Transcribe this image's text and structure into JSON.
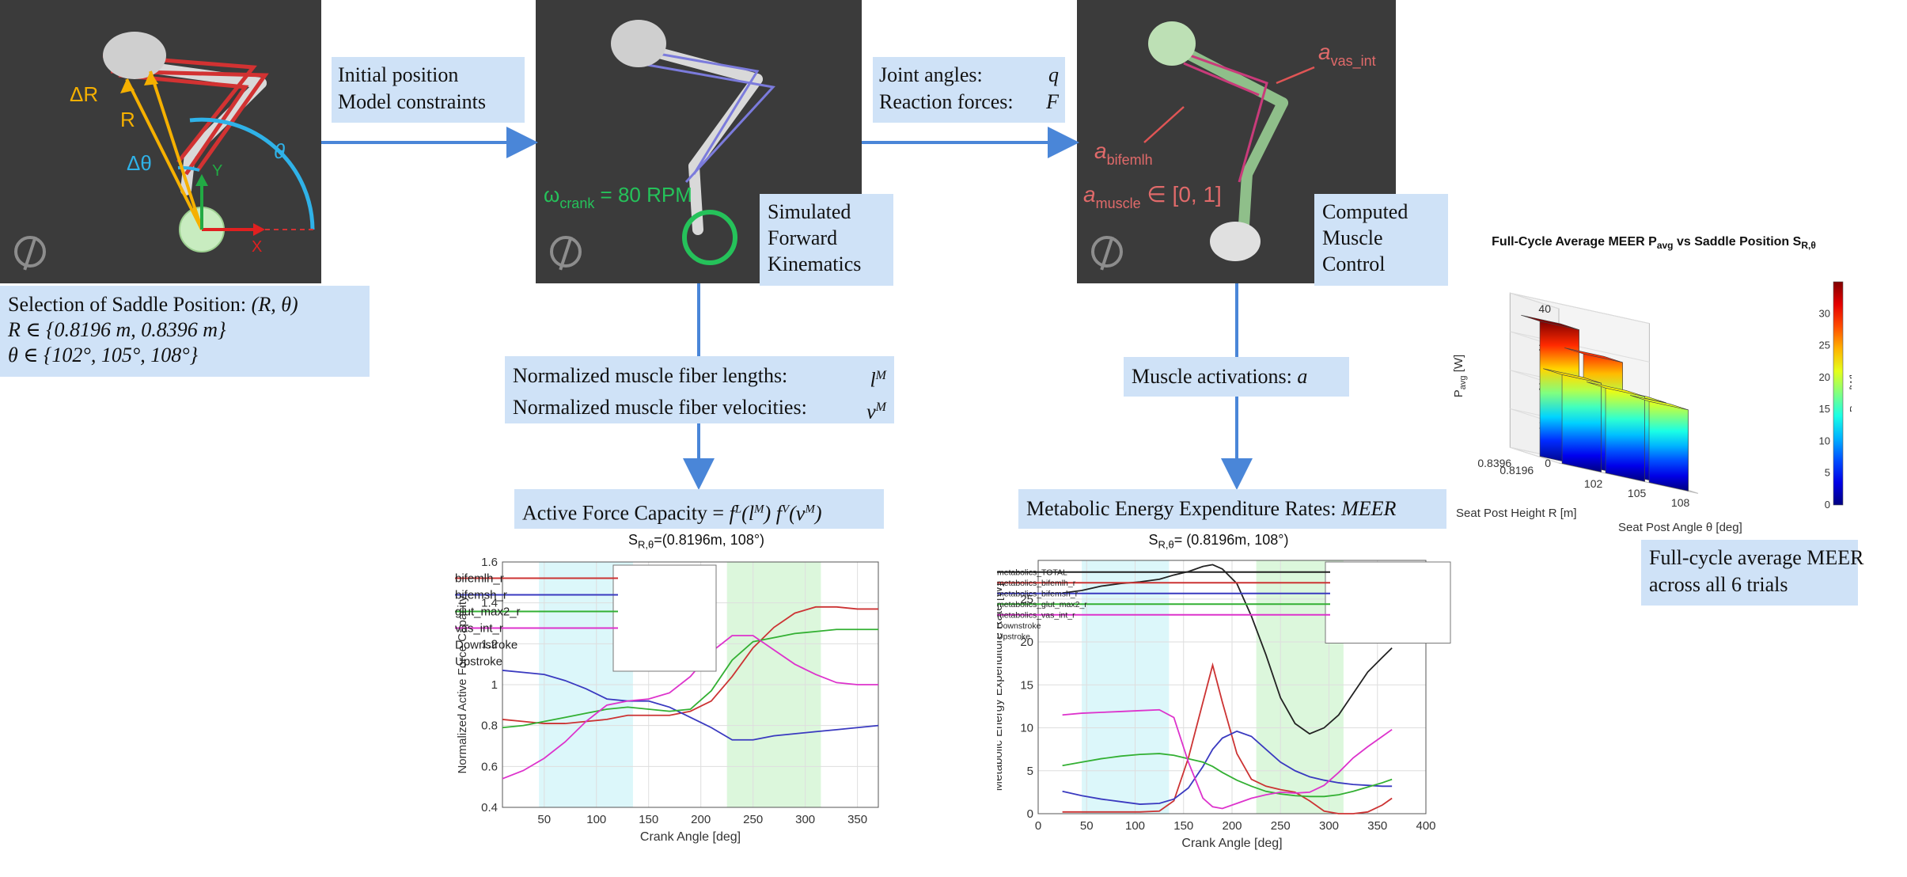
{
  "panels": {
    "p1": {
      "angle_r": "ΔR",
      "r": "R",
      "angle_dtheta": "Δθ",
      "theta": "θ",
      "axis_y": "Y",
      "axis_x": "X"
    },
    "p2": {
      "omega": "ω",
      "omega_sub": "crank",
      "omega_rest": " = 80 RPM"
    },
    "p3": {
      "a_vas": "a",
      "a_vas_sub": "vas_int",
      "a_bif": "a",
      "a_bif_sub": "bifemlh",
      "a_mus": "a",
      "a_mus_sub": "muscle",
      "a_mus_rest": " ∈ [0, 1]"
    }
  },
  "boxes": {
    "saddle": {
      "line1": "Selection of Saddle Position: ",
      "line1_it": "(R, θ)",
      "line2": "R ∈ {0.8196 m, 0.8396 m}",
      "line3": "θ ∈ {102°, 105°, 108°}"
    },
    "initial": {
      "line1": "Initial position",
      "line2": "Model constraints"
    },
    "joint": {
      "line1": "Joint angles:",
      "line1_sym": "q",
      "line2": "Reaction forces:",
      "line2_sym": "F"
    },
    "sim": {
      "line1": "Simulated",
      "line2": "Forward",
      "line3": "Kinematics"
    },
    "comp": {
      "line1": "Computed",
      "line2": "Muscle",
      "line3": "Control"
    },
    "fiber": {
      "line1": "Normalized muscle fiber lengths:",
      "line1_sym": "l",
      "line1_sup": "M",
      "line2": "Normalized muscle fiber velocities:",
      "line2_sym": "v",
      "line2_sup": "M"
    },
    "activ": {
      "label": "Muscle activations:",
      "sym": "a"
    },
    "afc": {
      "label": "Active Force Capacity = ",
      "formula": "f^L(l^M) f^V(v^M)"
    },
    "meer": {
      "label": "Metabolic Energy Expenditure Rates:",
      "sym": "MEER"
    },
    "fullcycle": {
      "line1": "Full-cycle average MEER",
      "line2": "across all 6 trials"
    }
  },
  "chart_data": [
    {
      "type": "line",
      "title": "S_R,θ=(0.8196m, 108°)",
      "title_main": "S",
      "title_sub": "R,θ",
      "title_rest": "=(0.8196m, 108°)",
      "xlabel": "Crank Angle [deg]",
      "ylabel": "Normalized Active Force Capacity",
      "xlim": [
        10,
        370
      ],
      "ylim": [
        0.4,
        1.6
      ],
      "xticks": [
        50,
        100,
        150,
        200,
        250,
        300,
        350
      ],
      "yticks": [
        0.4,
        0.6,
        0.8,
        1.0,
        1.2,
        1.4,
        1.6
      ],
      "ytick_labels": [
        "0.4",
        "0.6",
        "0.8",
        "1",
        "1.2",
        "1.4",
        "1.6"
      ],
      "grid": true,
      "legend_position": "top-center",
      "shaded_regions": [
        {
          "name": "Downstroke",
          "x0": 45,
          "x1": 135,
          "color": "#dcf7fa"
        },
        {
          "name": "Upstroke",
          "x0": 225,
          "x1": 315,
          "color": "#dcf7dc"
        }
      ],
      "x": [
        10,
        30,
        50,
        70,
        90,
        110,
        130,
        150,
        170,
        190,
        210,
        230,
        250,
        270,
        290,
        310,
        330,
        350,
        370
      ],
      "series": [
        {
          "name": "bifemlh_r",
          "color": "#cc3333",
          "values": [
            0.83,
            0.82,
            0.81,
            0.81,
            0.82,
            0.83,
            0.85,
            0.85,
            0.85,
            0.87,
            0.92,
            1.04,
            1.18,
            1.28,
            1.35,
            1.38,
            1.38,
            1.37,
            1.37
          ]
        },
        {
          "name": "bifemsh_r",
          "color": "#3a3ac0",
          "values": [
            1.07,
            1.06,
            1.05,
            1.02,
            0.98,
            0.93,
            0.92,
            0.92,
            0.89,
            0.84,
            0.79,
            0.73,
            0.73,
            0.75,
            0.76,
            0.77,
            0.78,
            0.79,
            0.8
          ]
        },
        {
          "name": "glut_max2_r",
          "color": "#33b033",
          "values": [
            0.79,
            0.8,
            0.82,
            0.84,
            0.86,
            0.88,
            0.89,
            0.88,
            0.87,
            0.88,
            0.97,
            1.12,
            1.21,
            1.23,
            1.25,
            1.26,
            1.27,
            1.27,
            1.27
          ]
        },
        {
          "name": "vas_int_r",
          "color": "#dd33cc",
          "values": [
            0.54,
            0.58,
            0.64,
            0.72,
            0.82,
            0.9,
            0.92,
            0.93,
            0.96,
            1.04,
            1.16,
            1.24,
            1.24,
            1.17,
            1.1,
            1.05,
            1.01,
            1.0,
            1.0
          ]
        }
      ]
    },
    {
      "type": "line",
      "title": "S_R,θ= (0.8196m, 108°)",
      "title_main": "S",
      "title_sub": "R,θ",
      "title_rest": "= (0.8196m, 108°)",
      "xlabel": "Crank Angle [deg]",
      "ylabel": "Metabolic Energy Expenditure Rate [W]",
      "xlim": [
        0,
        400
      ],
      "ylim": [
        0,
        29.5
      ],
      "xticks": [
        0,
        50,
        100,
        150,
        200,
        250,
        300,
        350,
        400
      ],
      "yticks": [
        0,
        5,
        10,
        15,
        20,
        25
      ],
      "grid": true,
      "legend_position": "top-right",
      "shaded_regions": [
        {
          "name": "Downstroke",
          "x0": 45,
          "x1": 135,
          "color": "#dcf7fa"
        },
        {
          "name": "Upstroke",
          "x0": 225,
          "x1": 315,
          "color": "#dcf7dc"
        }
      ],
      "x": [
        25,
        45,
        65,
        85,
        105,
        125,
        140,
        155,
        170,
        180,
        190,
        205,
        220,
        235,
        250,
        265,
        280,
        295,
        310,
        325,
        340,
        355,
        365
      ],
      "series": [
        {
          "name": "metabolics_TOTAL",
          "color": "#222222",
          "values": [
            25.7,
            26.0,
            26.5,
            26.8,
            27.0,
            27.3,
            27.8,
            28.2,
            28.8,
            29.0,
            28.5,
            26.8,
            23.0,
            18.5,
            13.5,
            10.5,
            9.3,
            10.0,
            11.5,
            14.0,
            16.5,
            18.2,
            19.3
          ]
        },
        {
          "name": "metabolics_bifemlh_r",
          "color": "#cc3333",
          "values": [
            0.2,
            0.2,
            0.2,
            0.2,
            0.2,
            0.3,
            1.5,
            6.5,
            13.0,
            17.3,
            13.0,
            7.0,
            4.0,
            3.2,
            2.8,
            2.5,
            1.5,
            0.3,
            0.0,
            0.0,
            0.2,
            1.0,
            1.8
          ]
        },
        {
          "name": "metabolics_bifemsh_r",
          "color": "#3a3ac0",
          "values": [
            2.6,
            2.1,
            1.7,
            1.4,
            1.1,
            1.2,
            1.7,
            3.0,
            5.5,
            7.5,
            8.8,
            9.6,
            9.0,
            7.5,
            6.0,
            5.0,
            4.3,
            3.9,
            3.6,
            3.4,
            3.3,
            3.2,
            3.2
          ]
        },
        {
          "name": "metabolics_glut_max2_r",
          "color": "#33b033",
          "values": [
            5.6,
            6.0,
            6.4,
            6.7,
            6.9,
            7.0,
            6.8,
            6.4,
            6.0,
            5.5,
            4.8,
            3.9,
            3.2,
            2.6,
            2.3,
            2.1,
            2.0,
            2.0,
            2.2,
            2.6,
            3.1,
            3.6,
            4.0
          ]
        },
        {
          "name": "metabolics_vas_int_r",
          "color": "#dd33cc",
          "values": [
            11.5,
            11.7,
            11.8,
            11.9,
            12.0,
            12.1,
            11.2,
            6.0,
            1.8,
            0.8,
            0.6,
            1.2,
            1.8,
            2.2,
            2.5,
            2.4,
            2.5,
            3.3,
            4.8,
            6.5,
            7.8,
            9.0,
            9.8
          ]
        }
      ]
    },
    {
      "type": "bar3d",
      "title": "Full-Cycle Average MEER P_avg vs Saddle Position S_R,θ",
      "title_a": "Full-Cycle Average MEER P",
      "title_sub1": "avg",
      "title_b": " vs Saddle Position S",
      "title_sub2": "R,θ",
      "xlabel": "Seat Post Height R [m]",
      "ylabel": "Seat Post Angle θ [deg]",
      "zlabel": "P_avg [W]",
      "zlabel_main": "P",
      "zlabel_sub": "avg",
      "zlabel_rest": " [W]",
      "zlim": [
        0,
        40
      ],
      "zticks": [
        0,
        10,
        20,
        30,
        40
      ],
      "x_ticks": [
        "0.8396",
        "0.8196"
      ],
      "y_ticks": [
        "102",
        "105",
        "108"
      ],
      "colorbar_label": "P_avg [W]",
      "colorbar_ticks": [
        0,
        5,
        10,
        15,
        20,
        25,
        30
      ],
      "colorbar_range": [
        0,
        35
      ],
      "bars": [
        {
          "R": "0.8396",
          "theta": "102",
          "value": 35
        },
        {
          "R": "0.8396",
          "theta": "105",
          "value": 29
        },
        {
          "R": "0.8396",
          "theta": "108",
          "value": 21
        },
        {
          "R": "0.8196",
          "theta": "102",
          "value": 23
        },
        {
          "R": "0.8196",
          "theta": "105",
          "value": 22
        },
        {
          "R": "0.8196",
          "theta": "108",
          "value": 21
        }
      ]
    }
  ]
}
